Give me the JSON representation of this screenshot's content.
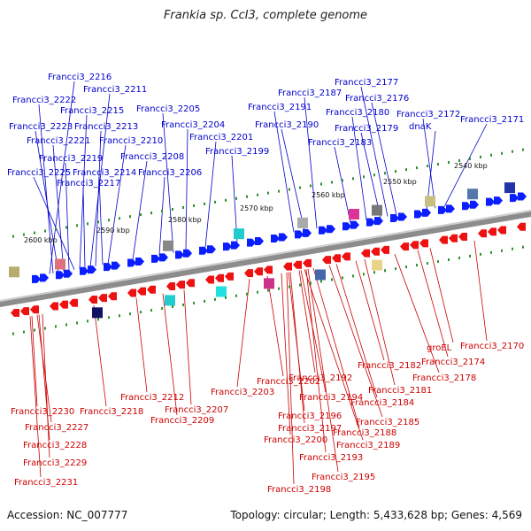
{
  "title": "Frankia sp. CcI3, complete genome",
  "accession": "Accession: NC_007777",
  "summary": "Topology: circular; Length: 5,433,628 bp; Genes: 4,569",
  "colors": {
    "forward_label": "#0000cc",
    "reverse_label": "#cc0000",
    "forward_arrow": "#0a1eff",
    "reverse_arrow": "#ee1111",
    "backbone": "#8c8c8c",
    "tick": "#2f8f2f"
  },
  "kbp_ticks": [
    "2540 kbp",
    "2550 kbp",
    "2560 kbp",
    "2570 kbp",
    "2580 kbp",
    "2590 kbp",
    "2600 kbp"
  ],
  "forward_labels": [
    "Francci3_2216",
    "Francci3_2211",
    "Francci3_2222",
    "Francci3_2215",
    "Francci3_2223",
    "Francci3_2213",
    "Francci3_2221",
    "Francci3_2210",
    "Francci3_2219",
    "Francci3_2208",
    "Francci3_2225",
    "Francci3_2214",
    "Francci3_2206",
    "Francci3_2217",
    "Francci3_2205",
    "Francci3_2204",
    "Francci3_2201",
    "Francci3_2199",
    "Francci3_2187",
    "Francci3_2191",
    "Francci3_2190",
    "Francci3_2177",
    "Francci3_2176",
    "Francci3_2180",
    "Francci3_2179",
    "Francci3_2183",
    "Francci3_2172",
    "dnaK",
    "Francci3_2171"
  ],
  "reverse_labels": [
    "Francci3_2170",
    "groEL",
    "Francci3_2174",
    "Francci3_2178",
    "Francci3_2182",
    "Francci3_2181",
    "Francci3_2184",
    "Francci3_2185",
    "Francci3_2188",
    "Francci3_2189",
    "Francci3_2192",
    "Francci3_2194",
    "Francci3_2202",
    "Francci3_2203",
    "Francci3_2196",
    "Francci3_2197",
    "Francci3_2200",
    "Francci3_2193",
    "Francci3_2195",
    "Francci3_2198",
    "Francci3_2212",
    "Francci3_2207",
    "Francci3_2209",
    "Francci3_2218",
    "Francci3_2230",
    "Francci3_2227",
    "Francci3_2228",
    "Francci3_2229",
    "Francci3_2231"
  ]
}
